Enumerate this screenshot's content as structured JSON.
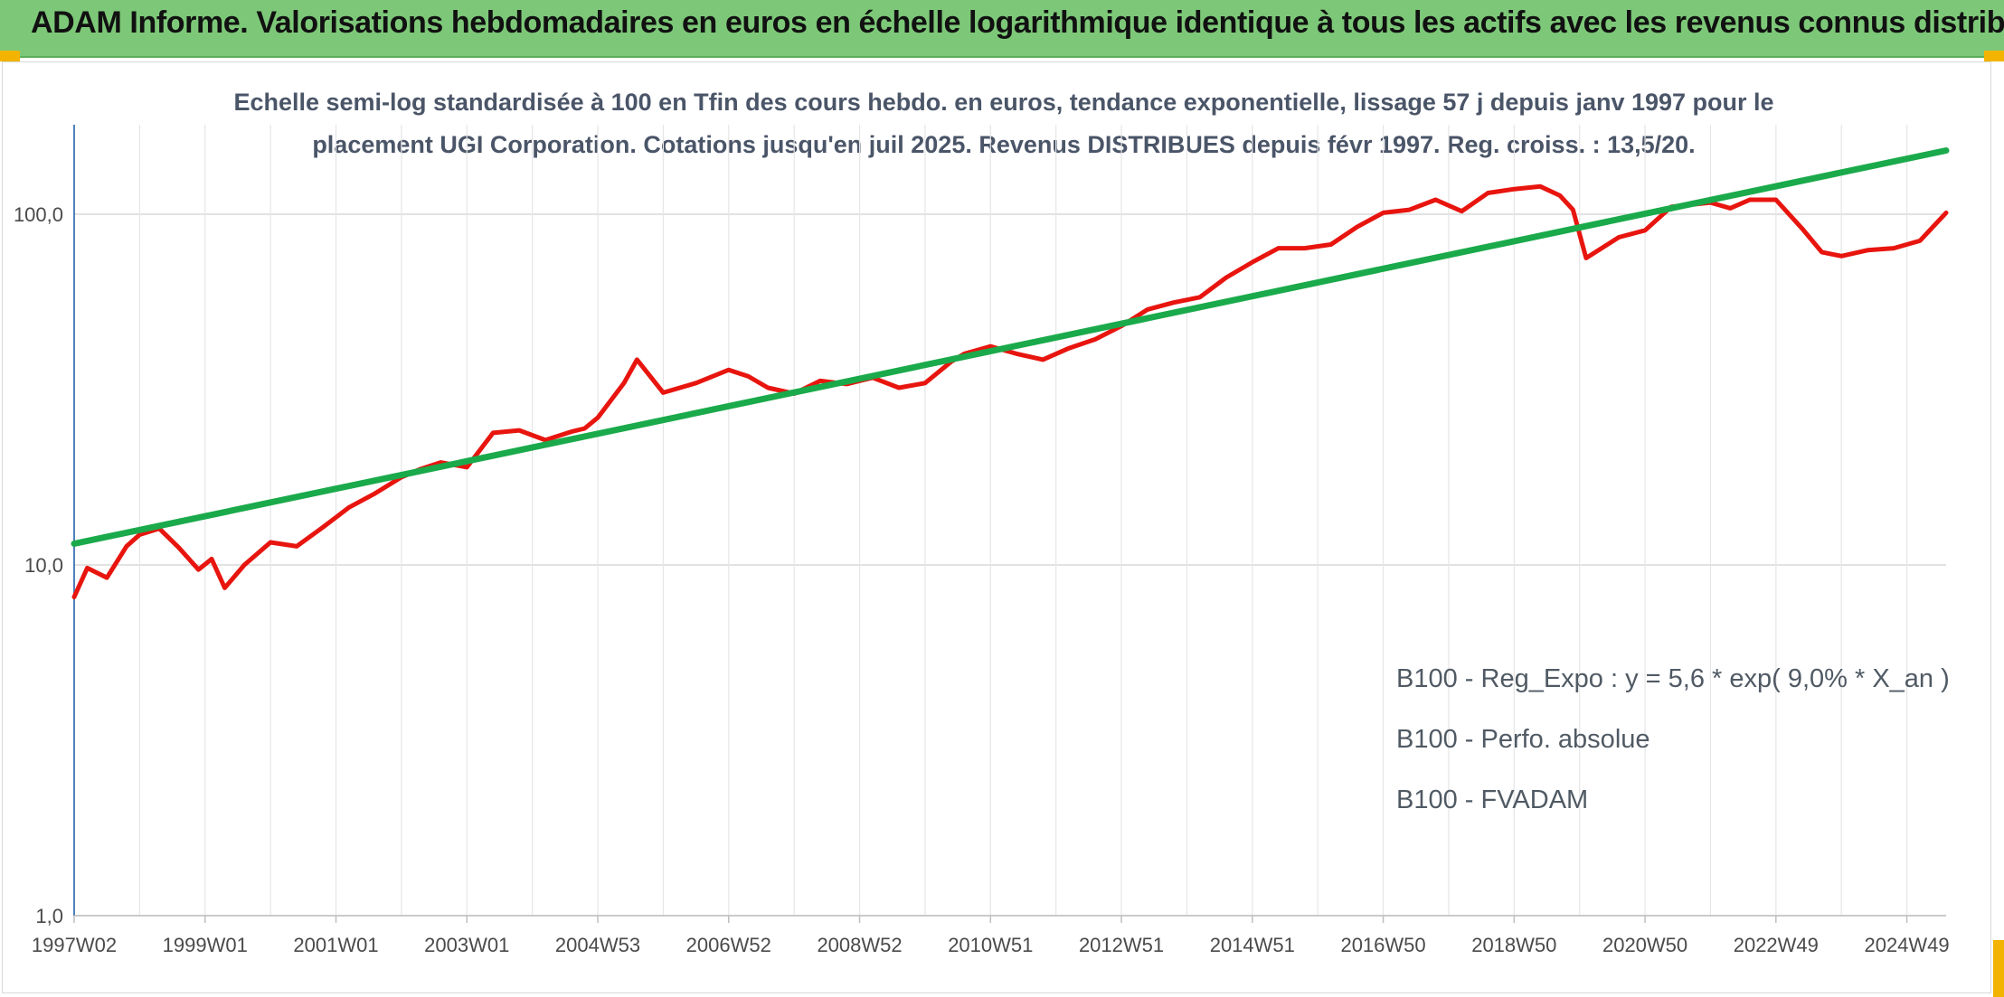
{
  "banner": {
    "title": "ADAM Informe. Valorisations hebdomadaires en euros en échelle logarithmique identique à tous les actifs avec les revenus connus distribués"
  },
  "colors": {
    "banner_bg": "#7dc878",
    "corner_accent": "#f2b400",
    "trend_line": "#1aaa4b",
    "perf_line": "#e8150f",
    "grid": "#d9d9d9",
    "axis": "#4f81bd"
  },
  "chart_data": {
    "type": "line",
    "title": "Echelle semi-log standardisée à 100 en Tfin des cours hebdo. en euros, tendance exponentielle, lissage 57 j depuis janv 1997 pour le placement UGI Corporation. Cotations jusqu'en juil 2025. Revenus DISTRIBUES depuis févr 1997. Reg. croiss. : 13,5/20.",
    "title_lines": [
      "Echelle semi-log standardisée à 100 en Tfin des cours hebdo. en euros, tendance exponentielle, lissage 57 j depuis janv 1997 pour le",
      "placement UGI Corporation. Cotations jusqu'en juil 2025. Revenus DISTRIBUES depuis févr 1997. Reg. croiss. : 13,5/20."
    ],
    "y_scale": "log",
    "ylim": [
      1,
      180
    ],
    "y_ticks": [
      "1,0",
      "10,0",
      "100,0"
    ],
    "y_tick_values": [
      1,
      10,
      100
    ],
    "xlim": [
      1997.0,
      2025.6
    ],
    "x_tick_labels": [
      "1997W02",
      "1999W01",
      "2001W01",
      "2003W01",
      "2004W53",
      "2006W52",
      "2008W52",
      "2010W51",
      "2012W51",
      "2014W51",
      "2016W50",
      "2018W50",
      "2020W50",
      "2022W49",
      "2024W49"
    ],
    "x_tick_values": [
      1997.0,
      1999.0,
      2001.0,
      2003.0,
      2005.0,
      2007.0,
      2009.0,
      2011.0,
      2013.0,
      2015.0,
      2017.0,
      2019.0,
      2021.0,
      2023.0,
      2025.0
    ],
    "grid": true,
    "legend_position": "bottom-right",
    "series": [
      {
        "name": "B100 - Reg_Expo : y = 5,6 * exp( 9,0% *  X_an )",
        "style": "solid",
        "x": [
          1997.0,
          2025.6
        ],
        "y": [
          11.5,
          152
        ]
      },
      {
        "name": "B100 - Perfo. absolue",
        "style": "dotted",
        "x": [],
        "y": []
      },
      {
        "name": "B100 - FVADAM",
        "style": "solid",
        "x": [
          1997.0,
          1997.2,
          1997.5,
          1997.8,
          1998.0,
          1998.3,
          1998.6,
          1998.9,
          1999.1,
          1999.3,
          1999.6,
          2000.0,
          2000.4,
          2000.8,
          2001.2,
          2001.6,
          2002.0,
          2002.3,
          2002.6,
          2003.0,
          2003.4,
          2003.8,
          2004.2,
          2004.6,
          2004.8,
          2005.0,
          2005.4,
          2005.6,
          2006.0,
          2006.5,
          2007.0,
          2007.3,
          2007.6,
          2008.0,
          2008.4,
          2008.8,
          2009.2,
          2009.6,
          2010.0,
          2010.4,
          2010.6,
          2011.0,
          2011.4,
          2011.8,
          2012.2,
          2012.6,
          2013.0,
          2013.4,
          2013.8,
          2014.2,
          2014.6,
          2015.0,
          2015.4,
          2015.8,
          2016.2,
          2016.6,
          2017.0,
          2017.4,
          2017.8,
          2018.2,
          2018.6,
          2019.0,
          2019.4,
          2019.7,
          2019.9,
          2020.1,
          2020.6,
          2021.0,
          2021.4,
          2021.8,
          2022.0,
          2022.3,
          2022.6,
          2023.0,
          2023.4,
          2023.7,
          2024.0,
          2024.4,
          2024.8,
          2025.2,
          2025.6
        ],
        "y": [
          8.1,
          9.8,
          9.2,
          11.3,
          12.2,
          12.7,
          11.2,
          9.7,
          10.4,
          8.6,
          10.0,
          11.6,
          11.3,
          12.8,
          14.6,
          16.0,
          17.8,
          18.8,
          19.6,
          19.0,
          23.8,
          24.2,
          22.7,
          24.0,
          24.5,
          26.3,
          33.0,
          38.5,
          31.0,
          33.0,
          36.0,
          34.5,
          32.0,
          30.8,
          33.5,
          32.8,
          34.2,
          32.0,
          33.0,
          38.0,
          40.0,
          42.0,
          40.0,
          38.5,
          41.5,
          44.0,
          48.0,
          53.5,
          56.0,
          58.0,
          66.0,
          73.0,
          80.0,
          80.0,
          82.0,
          92.0,
          101.0,
          103.0,
          110.0,
          102.0,
          115.0,
          118.0,
          120.0,
          113.0,
          103.0,
          75.0,
          86.0,
          90.0,
          105.0,
          107.0,
          108.0,
          104.0,
          110.0,
          110.0,
          91.0,
          78.0,
          76.0,
          79.0,
          80.0,
          84.0,
          101.0
        ]
      }
    ]
  }
}
